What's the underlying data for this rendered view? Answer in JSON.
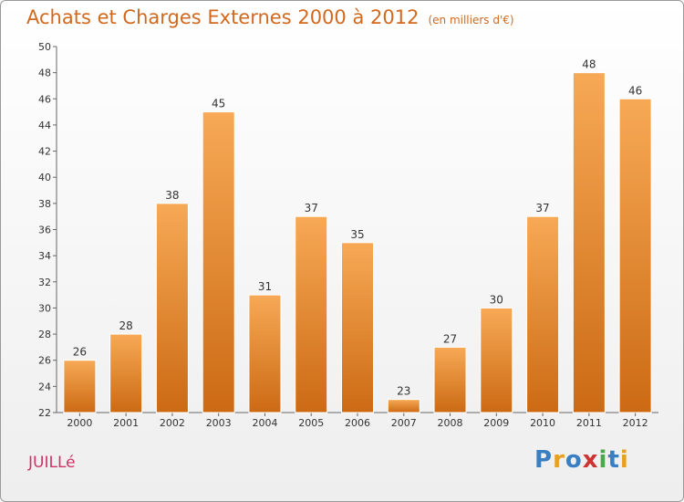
{
  "header": {
    "title": "Achats et Charges Externes 2000 à 2012",
    "subtitle": "(en milliers d'€)"
  },
  "footer": {
    "commune": "JUILLé",
    "logo": "Proxiti"
  },
  "colors": {
    "bar_light": "#f7a955",
    "bar_dark": "#cc6a14",
    "title": "#d2691e",
    "commune": "#cc3366"
  },
  "chart_data": {
    "type": "bar",
    "title": "Achats et Charges Externes 2000 à 2012",
    "subtitle": "(en milliers d'€)",
    "categories": [
      "2000",
      "2001",
      "2002",
      "2003",
      "2004",
      "2005",
      "2006",
      "2007",
      "2008",
      "2009",
      "2010",
      "2011",
      "2012"
    ],
    "values": [
      26,
      28,
      38,
      45,
      31,
      37,
      35,
      23,
      27,
      30,
      37,
      48,
      46
    ],
    "ylim": [
      22,
      50
    ],
    "yticks": [
      22,
      24,
      26,
      28,
      30,
      32,
      34,
      36,
      38,
      40,
      42,
      44,
      46,
      48,
      50
    ],
    "grid": false,
    "xlabel": "",
    "ylabel": ""
  }
}
